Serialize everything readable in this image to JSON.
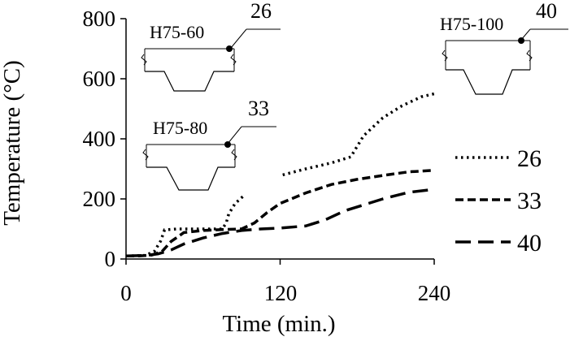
{
  "chart_data": {
    "type": "line",
    "xlabel": "Time (min.)",
    "ylabel": "Temperature (°C)",
    "xlim": [
      0,
      240
    ],
    "ylim": [
      0,
      800
    ],
    "x_ticks": [
      "0",
      "120",
      "240"
    ],
    "y_ticks": [
      "0",
      "200",
      "400",
      "600",
      "800"
    ],
    "x_tick_values": [
      0,
      120,
      240
    ],
    "y_tick_values": [
      0,
      200,
      400,
      600,
      800
    ],
    "grid": false,
    "legend_position": "right",
    "series": [
      {
        "name": "26",
        "style": "dotted",
        "segments": [
          [
            [
              0,
              10
            ],
            [
              15,
              12
            ],
            [
              22,
              25
            ],
            [
              27,
              60
            ],
            [
              30,
              97
            ],
            [
              40,
              100
            ],
            [
              60,
              100
            ],
            [
              75,
              100
            ],
            [
              78,
              120
            ],
            [
              80,
              150
            ],
            [
              85,
              185
            ],
            [
              92,
              212
            ]
          ],
          [
            [
              122,
              280
            ],
            [
              140,
              300
            ],
            [
              160,
              320
            ],
            [
              175,
              340
            ],
            [
              185,
              410
            ],
            [
              200,
              470
            ],
            [
              215,
              510
            ],
            [
              230,
              540
            ],
            [
              240,
              550
            ]
          ]
        ]
      },
      {
        "name": "33",
        "style": "dashed",
        "segments": [
          [
            [
              0,
              10
            ],
            [
              10,
              10
            ],
            [
              20,
              13
            ],
            [
              28,
              25
            ],
            [
              35,
              58
            ],
            [
              45,
              88
            ],
            [
              60,
              95
            ],
            [
              75,
              98
            ],
            [
              90,
              100
            ],
            [
              100,
              120
            ],
            [
              110,
              155
            ],
            [
              120,
              185
            ],
            [
              140,
              220
            ],
            [
              160,
              248
            ],
            [
              180,
              265
            ],
            [
              200,
              278
            ],
            [
              220,
              290
            ],
            [
              240,
              295
            ]
          ]
        ]
      },
      {
        "name": "40",
        "style": "long-dashed",
        "segments": [
          [
            [
              0,
              10
            ],
            [
              15,
              12
            ],
            [
              25,
              17
            ],
            [
              35,
              30
            ],
            [
              45,
              50
            ],
            [
              60,
              70
            ],
            [
              75,
              85
            ],
            [
              90,
              95
            ],
            [
              105,
              100
            ],
            [
              120,
              103
            ],
            [
              140,
              110
            ],
            [
              155,
              130
            ],
            [
              170,
              160
            ],
            [
              185,
              180
            ],
            [
              200,
              200
            ],
            [
              220,
              222
            ],
            [
              240,
              232
            ]
          ]
        ]
      }
    ],
    "insets": [
      {
        "label": "H75-60",
        "point_label": "26"
      },
      {
        "label": "H75-80",
        "point_label": "33"
      },
      {
        "label": "H75-100",
        "point_label": "40"
      }
    ],
    "colors": {
      "line": "#000000",
      "background": "#ffffff"
    }
  }
}
